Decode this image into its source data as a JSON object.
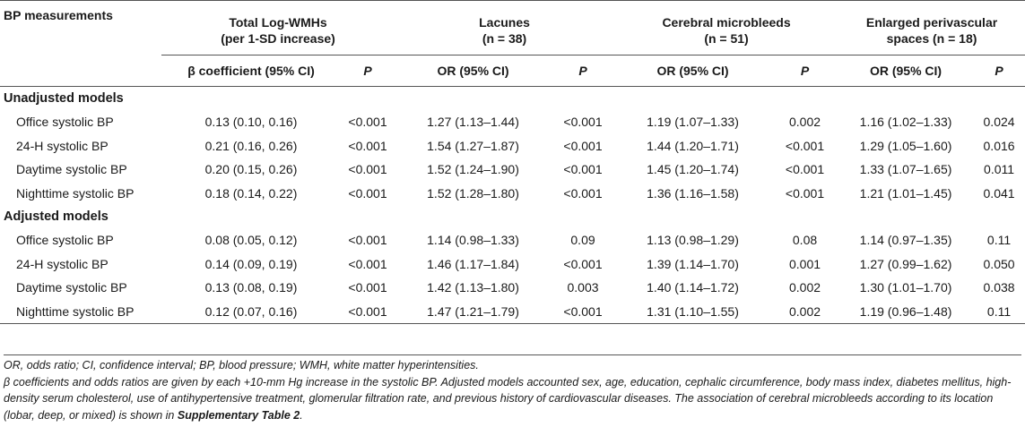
{
  "header": {
    "col1": "BP measurements",
    "groups": [
      {
        "line1": "Total Log-WMHs",
        "line2": "(per 1-SD increase)"
      },
      {
        "line1": "Lacunes",
        "line2": "(n = 38)"
      },
      {
        "line1": "Cerebral microbleeds",
        "line2": "(n = 51)"
      },
      {
        "line1": "Enlarged perivascular",
        "line2": "spaces (n = 18)"
      }
    ],
    "sub": [
      "β coefficient (95% CI)",
      "P",
      "OR (95% CI)",
      "P",
      "OR (95% CI)",
      "P",
      "OR (95% CI)",
      "P"
    ]
  },
  "sections": [
    {
      "title": "Unadjusted models",
      "rows": [
        {
          "label": "Office systolic BP",
          "cells": [
            "0.13 (0.10, 0.16)",
            "<0.001",
            "1.27 (1.13–1.44)",
            "<0.001",
            "1.19 (1.07–1.33)",
            "0.002",
            "1.16 (1.02–1.33)",
            "0.024"
          ]
        },
        {
          "label": "24-H systolic BP",
          "cells": [
            "0.21 (0.16, 0.26)",
            "<0.001",
            "1.54 (1.27–1.87)",
            "<0.001",
            "1.44 (1.20–1.71)",
            "<0.001",
            "1.29 (1.05–1.60)",
            "0.016"
          ]
        },
        {
          "label": "Daytime systolic BP",
          "cells": [
            "0.20 (0.15, 0.26)",
            "<0.001",
            "1.52 (1.24–1.90)",
            "<0.001",
            "1.45 (1.20–1.74)",
            "<0.001",
            "1.33 (1.07–1.65)",
            "0.011"
          ]
        },
        {
          "label": "Nighttime systolic BP",
          "cells": [
            "0.18 (0.14, 0.22)",
            "<0.001",
            "1.52 (1.28–1.80)",
            "<0.001",
            "1.36 (1.16–1.58)",
            "<0.001",
            "1.21 (1.01–1.45)",
            "0.041"
          ]
        }
      ]
    },
    {
      "title": "Adjusted models",
      "rows": [
        {
          "label": "Office systolic BP",
          "cells": [
            "0.08 (0.05, 0.12)",
            "<0.001",
            "1.14 (0.98–1.33)",
            "0.09",
            "1.13 (0.98–1.29)",
            "0.08",
            "1.14 (0.97–1.35)",
            "0.11"
          ]
        },
        {
          "label": "24-H systolic BP",
          "cells": [
            "0.14 (0.09, 0.19)",
            "<0.001",
            "1.46 (1.17–1.84)",
            "<0.001",
            "1.39 (1.14–1.70)",
            "0.001",
            "1.27 (0.99–1.62)",
            "0.050"
          ]
        },
        {
          "label": "Daytime systolic BP",
          "cells": [
            "0.13 (0.08, 0.19)",
            "<0.001",
            "1.42 (1.13–1.80)",
            "0.003",
            "1.40 (1.14–1.72)",
            "0.002",
            "1.30 (1.01–1.70)",
            "0.038"
          ]
        },
        {
          "label": "Nighttime systolic BP",
          "cells": [
            "0.12 (0.07, 0.16)",
            "<0.001",
            "1.47 (1.21–1.79)",
            "<0.001",
            "1.31 (1.10–1.55)",
            "0.002",
            "1.19 (0.96–1.48)",
            "0.11"
          ]
        }
      ]
    }
  ],
  "notes": {
    "line1": "OR, odds ratio; CI, confidence interval; BP, blood pressure; WMH, white matter hyperintensities.",
    "line2": "β coefficients and odds ratios are given by each +10-mm Hg increase in the systolic BP. Adjusted models accounted sex, age, education, cephalic circumference, body mass index, diabetes mellitus, high-density serum cholesterol, use of antihypertensive treatment, glomerular filtration rate, and previous history of cardiovascular diseases. The association of cerebral microbleeds according to its location (lobar, deep, or mixed) is shown in",
    "link": "Supplementary Table 2",
    "end": "."
  }
}
